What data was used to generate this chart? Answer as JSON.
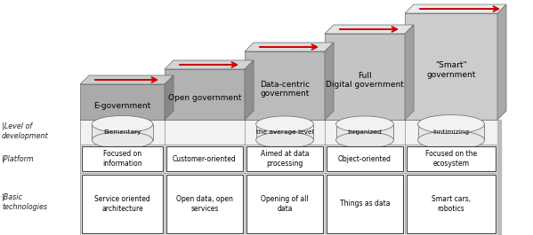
{
  "stages": [
    "E-government",
    "Open government",
    "Data-centric\ngovernment",
    "Full\nDigital government",
    "\"Smart\"\ngovernment"
  ],
  "level_labels": [
    "Elementary",
    "",
    "the average level",
    "Inrganized",
    "Inntimizing"
  ],
  "platform_labels": [
    "Focused on\ninformation",
    "Customer-oriented",
    "Aimed at data\nprocessing",
    "Object-oriented",
    "Focused on the\necosystem"
  ],
  "basic_tech_labels": [
    "Service oriented\narchitecture",
    "Open data, open\nservices",
    "Opening of all\ndata",
    "Things as data",
    "Smart cars,\nrobotics"
  ],
  "row_labels": [
    "|Level of\ndevelopment",
    "|Platform",
    "|Basic\ntechnologies"
  ],
  "background_color": "#ffffff",
  "arrow_color": "#cc0000",
  "text_color": "#000000"
}
